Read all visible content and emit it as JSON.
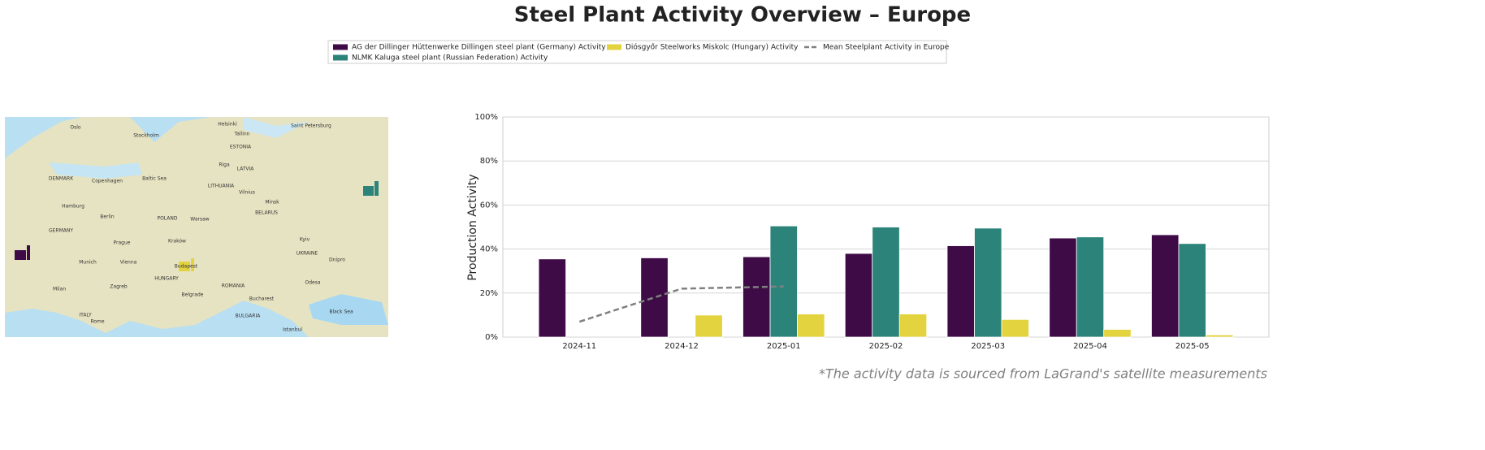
{
  "chart_data": {
    "type": "bar",
    "title": "Steel Plant Activity Overview – Europe",
    "ylabel": "Production Activity",
    "footnote": "*The activity data is sourced from LaGrand's satellite measurements",
    "categories": [
      "2024-11",
      "2024-12",
      "2025-01",
      "2025-02",
      "2025-03",
      "2025-04",
      "2025-05"
    ],
    "series": [
      {
        "name": "AG der Dillinger Hüttenwerke Dillingen steel plant (Germany) Activity",
        "color": "#3e0b47",
        "type": "bar",
        "values": [
          35.5,
          36,
          36.5,
          38,
          41.5,
          45,
          46.5
        ]
      },
      {
        "name": "NLMK Kaluga steel plant (Russian Federation) Activity",
        "color": "#2c837a",
        "type": "bar",
        "values": [
          null,
          null,
          50.5,
          50,
          49.5,
          45.5,
          42.5
        ]
      },
      {
        "name": "Diósgyőr Steelworks Miskolc (Hungary) Activity",
        "color": "#e3d33f",
        "type": "bar",
        "values": [
          null,
          10,
          10.5,
          10.5,
          8,
          3.5,
          1
        ]
      },
      {
        "name": "Mean Steelplant Activity in Europe",
        "color": "#808080",
        "type": "line",
        "dashed": true,
        "values": [
          7,
          22,
          23,
          null,
          null,
          null,
          null
        ]
      }
    ],
    "ylim": [
      0,
      100
    ],
    "yticks": [
      {
        "value": 0,
        "label": "0%"
      },
      {
        "value": 20,
        "label": "20%"
      },
      {
        "value": 40,
        "label": "40%"
      },
      {
        "value": 60,
        "label": "60%"
      },
      {
        "value": 80,
        "label": "80%"
      },
      {
        "value": 100,
        "label": "100%"
      }
    ],
    "grid": true,
    "legend": "top"
  },
  "map": {
    "labels": [
      "Oslo",
      "Stockholm",
      "Helsinki",
      "Tallinn",
      "Saint Petersburg",
      "ESTONIA",
      "Riga",
      "LATVIA",
      "LITHUANIA",
      "Vilnius",
      "Minsk",
      "BELARUS",
      "DENMARK",
      "Copenhagen",
      "Baltic Sea",
      "Hamburg",
      "Berlin",
      "POLAND",
      "Warsaw",
      "GERMANY",
      "Prague",
      "Kraków",
      "Kyiv",
      "UKRAINE",
      "Munich",
      "Vienna",
      "Budapest",
      "HUNGARY",
      "Zagreb",
      "Belgrade",
      "ROMANIA",
      "Bucharest",
      "BULGARIA",
      "Black Sea",
      "Milan",
      "ITALY",
      "Rome",
      "Odesa",
      "Dnipro",
      "Istanbul"
    ]
  }
}
